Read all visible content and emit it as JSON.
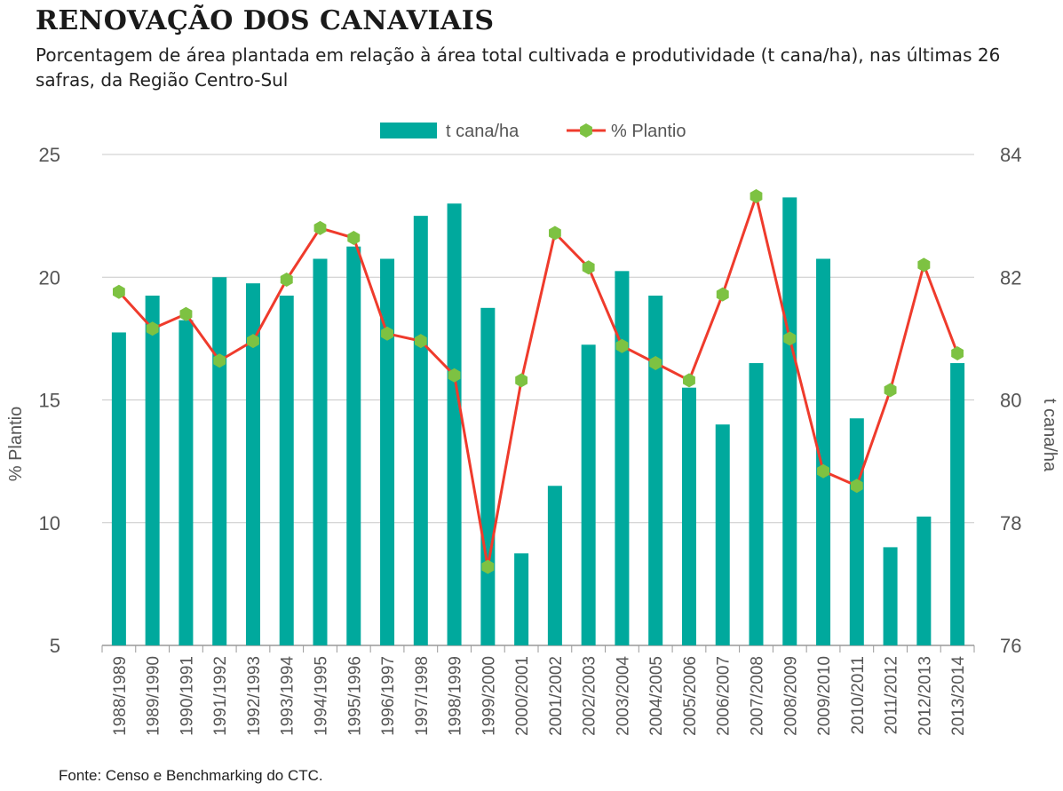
{
  "title": "RENOVAÇÃO DOS CANAVIAIS",
  "subtitle": "Porcentagem de área plantada em relação à área total cultivada e produtividade (t cana/ha), nas últimas 26 safras, da Região Centro-Sul",
  "source": "Fonte: Censo e Benchmarking do CTC.",
  "colors": {
    "bar": "#00a99d",
    "line": "#ef3b2c",
    "marker": "#7dc242",
    "grid": "#c8c8c8",
    "text": "#555555"
  },
  "chart_data": {
    "type": "bar",
    "categories": [
      "1988/1989",
      "1989/1990",
      "1990/1991",
      "1991/1992",
      "1992/1993",
      "1993/1994",
      "1994/1995",
      "1995/1996",
      "1996/1997",
      "1997/1998",
      "1998/1999",
      "1999/2000",
      "2000/2001",
      "2001/2002",
      "2002/2003",
      "2003/2004",
      "2004/2005",
      "2005/2006",
      "2006/2007",
      "2007/2008",
      "2008/2009",
      "2009/2010",
      "2010/2011",
      "2011/2012",
      "2012/2013",
      "2013/2014"
    ],
    "series": [
      {
        "name": "t cana/ha",
        "type": "bar",
        "axis": "right",
        "values": [
          81.1,
          81.7,
          81.3,
          82.0,
          81.9,
          81.7,
          82.3,
          82.5,
          82.3,
          83.0,
          83.2,
          81.5,
          77.5,
          78.6,
          80.9,
          82.1,
          81.7,
          80.2,
          79.6,
          80.6,
          83.3,
          82.3,
          79.7,
          77.6,
          78.1,
          80.6
        ]
      },
      {
        "name": "% Plantio",
        "type": "line",
        "axis": "left",
        "values": [
          19.4,
          17.9,
          18.5,
          16.6,
          17.4,
          19.9,
          22.0,
          21.6,
          17.7,
          17.4,
          16.0,
          8.2,
          15.8,
          21.8,
          20.4,
          17.2,
          16.5,
          15.8,
          19.3,
          23.3,
          17.5,
          12.1,
          11.5,
          15.4,
          20.5,
          16.9
        ]
      }
    ],
    "y_left": {
      "label": "% Plantio",
      "ticks": [
        5,
        10,
        15,
        20,
        25
      ],
      "range": [
        5,
        25
      ]
    },
    "y_right": {
      "label": "t cana/ha",
      "ticks": [
        76,
        78,
        80,
        82,
        84
      ],
      "range": [
        76,
        84
      ]
    },
    "legend": {
      "position": "top-center"
    },
    "grid": "horizontal"
  }
}
